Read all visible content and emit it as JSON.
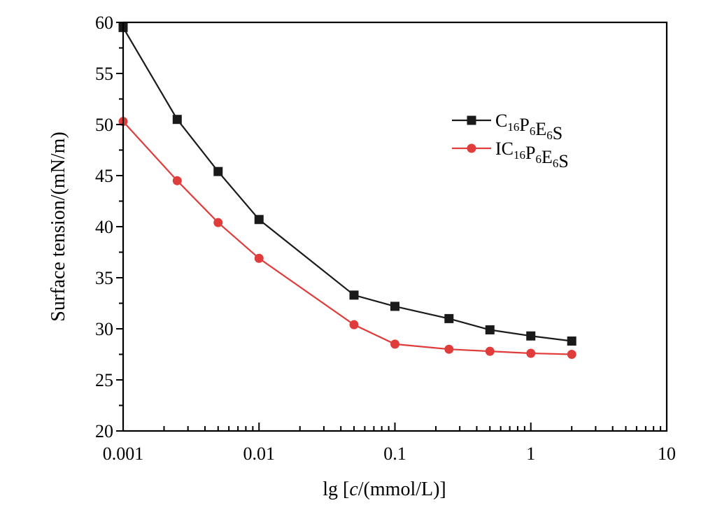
{
  "chart_data": {
    "type": "line",
    "title": "",
    "xlabel": "lg [c/(mmol/L)]",
    "xlabel_parts": {
      "prefix": "lg [",
      "italic": "c",
      "suffix": "/(mmol/L)]"
    },
    "ylabel": "Surface tension/(mN/m)",
    "xscale": "log",
    "xlim": [
      0.001,
      10
    ],
    "ylim": [
      20,
      60
    ],
    "xticks": [
      "0.001",
      "0.01",
      "0.1",
      "1",
      "10"
    ],
    "yticks": [
      "20",
      "25",
      "30",
      "35",
      "40",
      "45",
      "50",
      "55",
      "60"
    ],
    "grid": false,
    "legend_position": "top-right",
    "series": [
      {
        "name": "C16P6E6S",
        "name_parts": [
          {
            "t": "C",
            "sub": "16"
          },
          {
            "t": "P",
            "sub": "6"
          },
          {
            "t": "E",
            "sub": "6"
          },
          {
            "t": "S",
            "sub": ""
          }
        ],
        "color": "#1a1a1a",
        "marker": "square",
        "x": [
          0.001,
          0.0025,
          0.005,
          0.01,
          0.05,
          0.1,
          0.25,
          0.5,
          1,
          2
        ],
        "y": [
          59.5,
          50.5,
          45.4,
          40.7,
          33.3,
          32.2,
          31.0,
          29.9,
          29.3,
          28.8
        ]
      },
      {
        "name": "IC16P6E6S",
        "name_parts": [
          {
            "t": "IC",
            "sub": "16"
          },
          {
            "t": "P",
            "sub": "6"
          },
          {
            "t": "E",
            "sub": "6"
          },
          {
            "t": "S",
            "sub": ""
          }
        ],
        "color": "#e03c3c",
        "marker": "circle",
        "x": [
          0.001,
          0.0025,
          0.005,
          0.01,
          0.05,
          0.1,
          0.25,
          0.5,
          1,
          2
        ],
        "y": [
          50.3,
          44.5,
          40.4,
          36.9,
          30.4,
          28.5,
          28.0,
          27.8,
          27.6,
          27.5
        ]
      }
    ]
  }
}
